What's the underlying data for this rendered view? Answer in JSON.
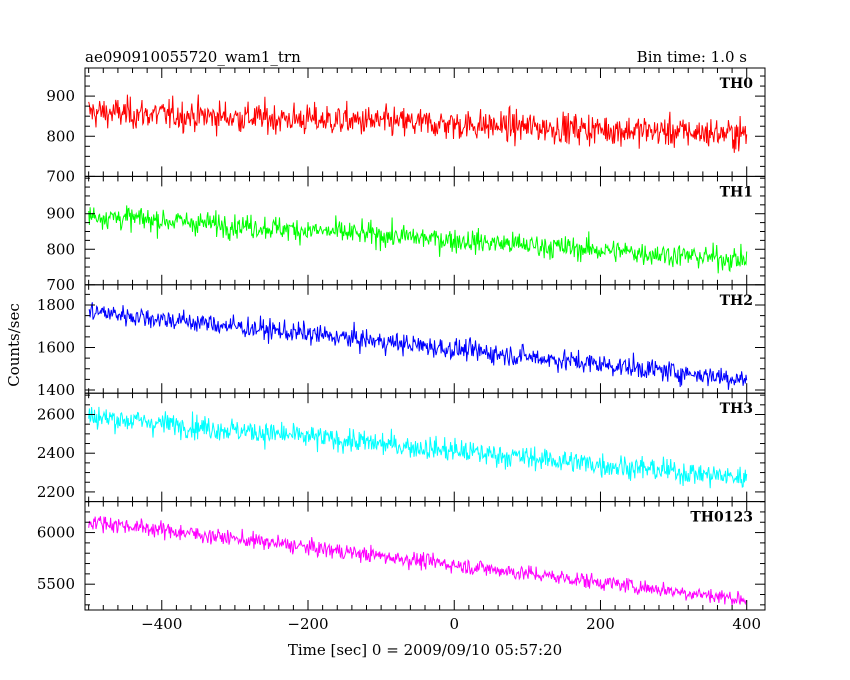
{
  "title_left": "ae090910055720_wam1_trn",
  "title_right": "Bin time: 1.0 s",
  "ylabel": "Counts/sec",
  "xlabel": "Time [sec] 0 = 2009/09/10 05:57:20",
  "chart_data": {
    "type": "line",
    "title": "ae090910055720_wam1_trn",
    "subtitle": "Bin time: 1.0 s",
    "xlabel": "Time [sec] 0 = 2009/09/10 05:57:20",
    "ylabel": "Counts/sec",
    "xlim": [
      -505,
      425
    ],
    "x_ticks": [
      -400,
      -200,
      0,
      200,
      400
    ],
    "x_range": [
      -500,
      400
    ],
    "bin_time": 1.0,
    "panels": [
      {
        "name": "TH0",
        "color": "#ff0000",
        "ylim": [
          700,
          970
        ],
        "y_ticks": [
          700,
          800,
          900
        ],
        "start": 860,
        "end": 805,
        "noise": 35
      },
      {
        "name": "TH1",
        "color": "#00ff00",
        "ylim": [
          700,
          1005
        ],
        "y_ticks": [
          700,
          800,
          900
        ],
        "start": 895,
        "end": 770,
        "noise": 30
      },
      {
        "name": "TH2",
        "color": "#0000ff",
        "ylim": [
          1385,
          1895
        ],
        "y_ticks": [
          1400,
          1600,
          1800
        ],
        "start": 1770,
        "end": 1450,
        "noise": 45
      },
      {
        "name": "TH3",
        "color": "#00ffff",
        "ylim": [
          2150,
          2710
        ],
        "y_ticks": [
          2200,
          2400,
          2600
        ],
        "start": 2590,
        "end": 2270,
        "noise": 55
      },
      {
        "name": "TH0123",
        "color": "#ff00ff",
        "ylim": [
          5250,
          6300
        ],
        "y_ticks": [
          5500,
          6000
        ],
        "start": 6110,
        "end": 5350,
        "noise": 70
      }
    ]
  }
}
